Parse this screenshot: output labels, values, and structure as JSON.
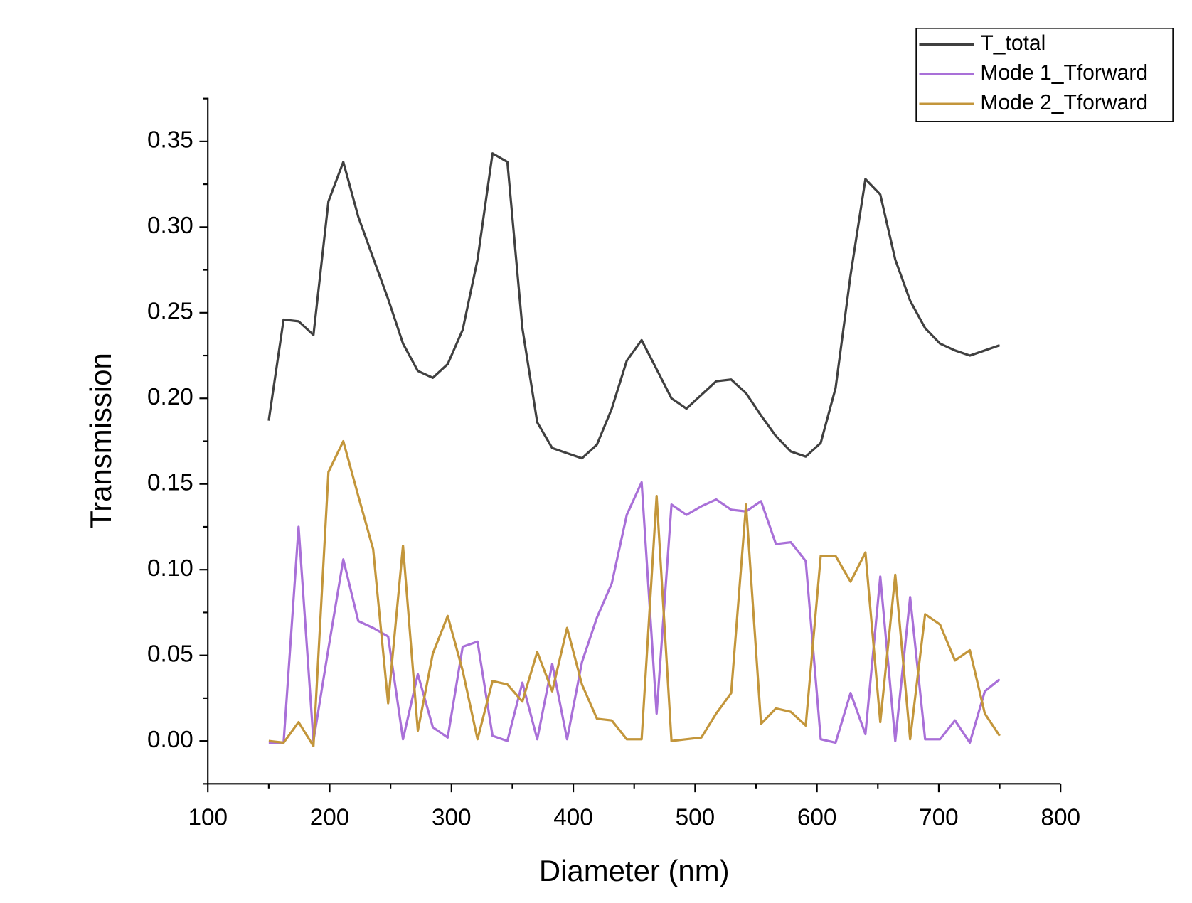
{
  "chart_data": {
    "type": "line",
    "xlabel": "Diameter (nm)",
    "ylabel": "Transmission",
    "x": [
      150,
      162.2,
      174.5,
      186.7,
      199.0,
      211.2,
      223.5,
      235.7,
      248.0,
      260.2,
      272.4,
      284.7,
      296.9,
      309.2,
      321.4,
      333.7,
      345.9,
      358.2,
      370.4,
      382.7,
      394.9,
      407.1,
      419.4,
      431.6,
      443.9,
      456.1,
      468.4,
      480.6,
      492.9,
      505.1,
      517.3,
      529.6,
      541.8,
      554.1,
      566.3,
      578.6,
      590.8,
      603.1,
      615.3,
      627.6,
      639.8,
      652.0,
      664.3,
      676.5,
      688.8,
      701.0,
      713.3,
      725.5,
      737.8,
      750
    ],
    "series": [
      {
        "name": "T_total",
        "color": "#404040",
        "values": [
          0.187,
          0.246,
          0.245,
          0.237,
          0.315,
          0.338,
          0.306,
          0.282,
          0.258,
          0.232,
          0.216,
          0.212,
          0.22,
          0.24,
          0.281,
          0.343,
          0.338,
          0.241,
          0.186,
          0.171,
          0.168,
          0.165,
          0.173,
          0.194,
          0.222,
          0.234,
          0.217,
          0.2,
          0.194,
          0.202,
          0.21,
          0.211,
          0.203,
          0.19,
          0.178,
          0.169,
          0.166,
          0.174,
          0.206,
          0.272,
          0.328,
          0.319,
          0.281,
          0.257,
          0.241,
          0.232,
          0.228,
          0.225,
          0.228,
          0.231
        ]
      },
      {
        "name": "Mode 1_Tforward",
        "color": "#a970d8",
        "values": [
          -0.001,
          -0.001,
          0.125,
          0.0,
          0.054,
          0.106,
          0.07,
          0.066,
          0.061,
          0.001,
          0.039,
          0.008,
          0.002,
          0.055,
          0.058,
          0.003,
          0.0,
          0.034,
          0.001,
          0.045,
          0.001,
          0.046,
          0.072,
          0.092,
          0.132,
          0.151,
          0.016,
          0.138,
          0.132,
          0.137,
          0.141,
          0.135,
          0.134,
          0.14,
          0.115,
          0.116,
          0.105,
          0.001,
          -0.001,
          0.028,
          0.004,
          0.096,
          0.0,
          0.084,
          0.001,
          0.001,
          0.012,
          -0.001,
          0.029,
          0.036
        ]
      },
      {
        "name": "Mode 2_Tforward",
        "color": "#c3963b",
        "values": [
          0.0,
          -0.001,
          0.011,
          -0.003,
          0.157,
          0.175,
          0.143,
          0.112,
          0.022,
          0.114,
          0.006,
          0.051,
          0.073,
          0.041,
          0.001,
          0.035,
          0.033,
          0.023,
          0.052,
          0.029,
          0.066,
          0.033,
          0.013,
          0.012,
          0.001,
          0.001,
          0.143,
          0.0,
          0.001,
          0.002,
          0.016,
          0.028,
          0.138,
          0.01,
          0.019,
          0.017,
          0.009,
          0.108,
          0.108,
          0.093,
          0.11,
          0.011,
          0.097,
          0.001,
          0.074,
          0.068,
          0.047,
          0.053,
          0.016,
          0.003
        ]
      }
    ],
    "xlim": [
      100,
      800
    ],
    "xticks": [
      100,
      200,
      300,
      400,
      500,
      600,
      700,
      800
    ],
    "ylim": [
      -0.025,
      0.375
    ],
    "yticks": [
      {
        "value": 0,
        "label": "0.00"
      },
      {
        "value": 0.05,
        "label": "0.05"
      },
      {
        "value": 0.1,
        "label": "0.10"
      },
      {
        "value": 0.15,
        "label": "0.15"
      },
      {
        "value": 0.2,
        "label": "0.20"
      },
      {
        "value": 0.25,
        "label": "0.25"
      },
      {
        "value": 0.3,
        "label": "0.30"
      },
      {
        "value": 0.35,
        "label": "0.35"
      }
    ],
    "legend": "upper right",
    "grid": false
  }
}
